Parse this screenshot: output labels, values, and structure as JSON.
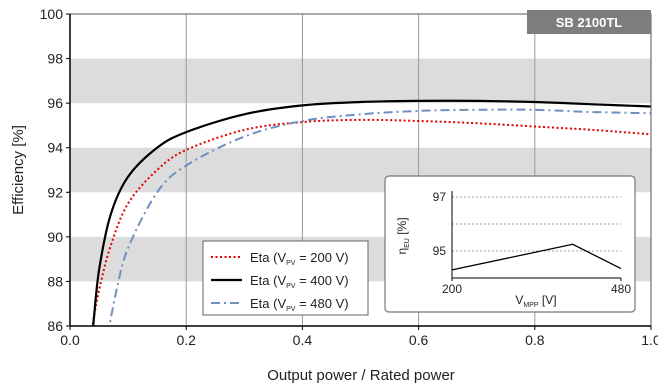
{
  "colors": {
    "band": "#dcdcdc",
    "grid": "#9a9a9a",
    "badge": "#7d7d7d",
    "series_200": "#e00000",
    "series_400": "#000000",
    "series_480": "#6f8fbf"
  },
  "badge": "SB 2100TL",
  "chart_data": {
    "type": "line",
    "xlabel": "Output power / Rated power",
    "ylabel": "Efficiency [%]",
    "xlim": [
      0.0,
      1.0
    ],
    "ylim": [
      86,
      100
    ],
    "xticks": [
      "0.0",
      "0.2",
      "0.4",
      "0.6",
      "0.8",
      "1.0"
    ],
    "yticks": [
      "86",
      "88",
      "90",
      "92",
      "94",
      "96",
      "98",
      "100"
    ],
    "grid": "vertical lines, alternating gray horizontal bands",
    "legend_position": "bottom-left",
    "series": [
      {
        "name": "Eta (VPV = 200 V)",
        "label_pre": "Eta (V",
        "label_sub": "PV",
        "label_post": " = 200 V)",
        "style": "dotted",
        "x": [
          0.035,
          0.05,
          0.07,
          0.1,
          0.15,
          0.2,
          0.3,
          0.4,
          0.5,
          0.6,
          0.7,
          0.8,
          0.9,
          1.0
        ],
        "y": [
          85.5,
          87.6,
          89.6,
          91.5,
          93.0,
          93.9,
          94.8,
          95.15,
          95.25,
          95.2,
          95.1,
          94.95,
          94.8,
          94.6
        ]
      },
      {
        "name": "Eta (VPV = 400 V)",
        "label_pre": "Eta (V",
        "label_sub": "PV",
        "label_post": " = 400 V)",
        "style": "solid",
        "x": [
          0.04,
          0.05,
          0.07,
          0.1,
          0.15,
          0.2,
          0.3,
          0.4,
          0.5,
          0.6,
          0.7,
          0.8,
          0.9,
          1.0
        ],
        "y": [
          86.0,
          88.5,
          91.0,
          92.7,
          94.0,
          94.7,
          95.5,
          95.9,
          96.05,
          96.1,
          96.1,
          96.05,
          95.95,
          95.85
        ]
      },
      {
        "name": "Eta (VPV = 480 V)",
        "label_pre": "Eta (V",
        "label_sub": "PV",
        "label_post": " = 480 V)",
        "style": "dashdot",
        "x": [
          0.065,
          0.08,
          0.1,
          0.15,
          0.2,
          0.3,
          0.4,
          0.5,
          0.6,
          0.7,
          0.8,
          0.9,
          1.0
        ],
        "y": [
          85.6,
          87.6,
          89.5,
          92.0,
          93.2,
          94.5,
          95.2,
          95.5,
          95.65,
          95.7,
          95.7,
          95.6,
          95.55
        ]
      }
    ],
    "inset": {
      "type": "line",
      "xlabel_pre": "V",
      "xlabel_sub": "MPP",
      "xlabel_post": " [V]",
      "ylabel_pre": "η",
      "ylabel_sub": "EU",
      "ylabel_post": " [%]",
      "xticks": [
        "200",
        "480"
      ],
      "yticks": [
        "97",
        "95"
      ],
      "xlim": [
        200,
        480
      ],
      "ylim": [
        94,
        97
      ],
      "series": [
        {
          "x": [
            200,
            400,
            480
          ],
          "y": [
            94.3,
            95.25,
            94.35
          ]
        }
      ]
    }
  }
}
